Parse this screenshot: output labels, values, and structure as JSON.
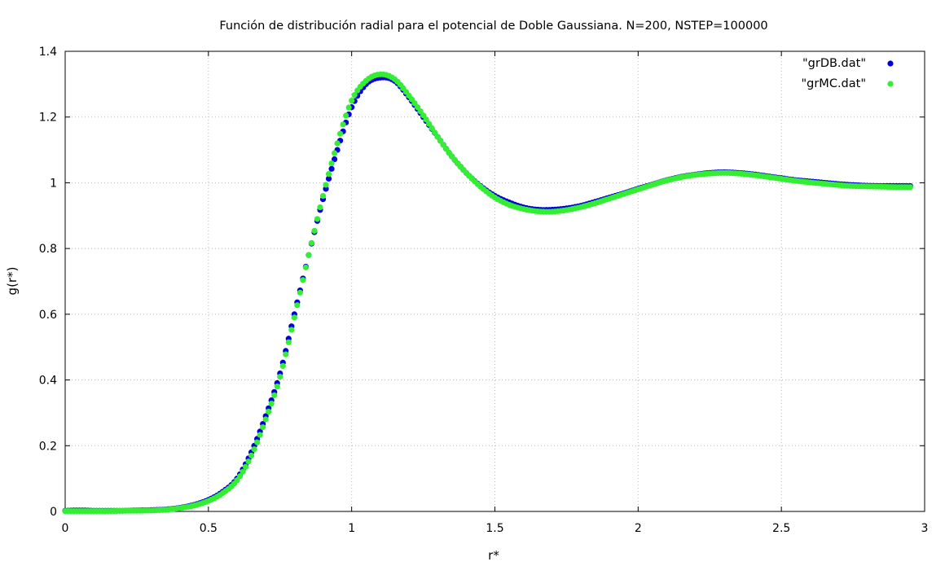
{
  "chart_data": {
    "type": "scatter",
    "title": "Función de distribución radial para el potencial de Doble Gaussiana. N=200, NSTEP=100000",
    "xlabel": "r*",
    "ylabel": "g(r*)",
    "xlim": [
      0,
      3
    ],
    "ylim": [
      0,
      1.4
    ],
    "xticks": [
      0,
      0.5,
      1,
      1.5,
      2,
      2.5,
      3
    ],
    "xtick_labels": [
      "0",
      "0.5",
      "1",
      "1.5",
      "2",
      "2.5",
      "3"
    ],
    "yticks": [
      0,
      0.2,
      0.4,
      0.6,
      0.8,
      1.0,
      1.2,
      1.4
    ],
    "ytick_labels": [
      "0",
      "0.2",
      "0.4",
      "0.6",
      "0.8",
      "1",
      "1.2",
      "1.4"
    ],
    "grid": true,
    "legend_position": "top-right",
    "series": [
      {
        "name": "\"grDB.dat\"",
        "color": "#0000dd",
        "x": [
          0.0,
          0.05,
          0.1,
          0.15,
          0.2,
          0.25,
          0.3,
          0.35,
          0.4,
          0.45,
          0.5,
          0.55,
          0.6,
          0.65,
          0.7,
          0.75,
          0.8,
          0.85,
          0.9,
          0.95,
          1.0,
          1.05,
          1.1,
          1.15,
          1.2,
          1.25,
          1.3,
          1.35,
          1.4,
          1.45,
          1.5,
          1.55,
          1.6,
          1.65,
          1.7,
          1.75,
          1.8,
          1.85,
          1.9,
          1.95,
          2.0,
          2.05,
          2.1,
          2.15,
          2.2,
          2.25,
          2.3,
          2.35,
          2.4,
          2.45,
          2.5,
          2.55,
          2.6,
          2.65,
          2.7,
          2.75,
          2.8,
          2.85,
          2.9,
          2.95
        ],
        "values": [
          0.002,
          0.003,
          0.002,
          0.002,
          0.002,
          0.003,
          0.004,
          0.006,
          0.011,
          0.02,
          0.035,
          0.06,
          0.1,
          0.18,
          0.29,
          0.42,
          0.6,
          0.78,
          0.95,
          1.1,
          1.23,
          1.3,
          1.32,
          1.31,
          1.26,
          1.2,
          1.14,
          1.08,
          1.03,
          0.99,
          0.96,
          0.94,
          0.925,
          0.918,
          0.918,
          0.922,
          0.93,
          0.942,
          0.955,
          0.968,
          0.982,
          0.995,
          1.008,
          1.018,
          1.025,
          1.03,
          1.032,
          1.03,
          1.026,
          1.02,
          1.014,
          1.008,
          1.004,
          1.0,
          0.996,
          0.993,
          0.991,
          0.99,
          0.99,
          0.99
        ]
      },
      {
        "name": "\"grMC.dat\"",
        "color": "#33ee33",
        "x": [
          0.0,
          0.05,
          0.1,
          0.15,
          0.2,
          0.25,
          0.3,
          0.35,
          0.4,
          0.45,
          0.5,
          0.55,
          0.6,
          0.65,
          0.7,
          0.75,
          0.8,
          0.85,
          0.9,
          0.95,
          1.0,
          1.05,
          1.1,
          1.15,
          1.2,
          1.25,
          1.3,
          1.35,
          1.4,
          1.45,
          1.5,
          1.55,
          1.6,
          1.65,
          1.7,
          1.75,
          1.8,
          1.85,
          1.9,
          1.95,
          2.0,
          2.05,
          2.1,
          2.15,
          2.2,
          2.25,
          2.3,
          2.35,
          2.4,
          2.45,
          2.5,
          2.55,
          2.6,
          2.65,
          2.7,
          2.75,
          2.8,
          2.85,
          2.9,
          2.95
        ],
        "values": [
          0.001,
          0.001,
          0.001,
          0.001,
          0.002,
          0.002,
          0.003,
          0.005,
          0.01,
          0.018,
          0.032,
          0.056,
          0.095,
          0.17,
          0.28,
          0.41,
          0.59,
          0.78,
          0.96,
          1.12,
          1.25,
          1.31,
          1.33,
          1.315,
          1.265,
          1.205,
          1.14,
          1.08,
          1.03,
          0.988,
          0.955,
          0.933,
          0.92,
          0.913,
          0.912,
          0.917,
          0.926,
          0.938,
          0.952,
          0.966,
          0.98,
          0.994,
          1.007,
          1.017,
          1.024,
          1.028,
          1.03,
          1.028,
          1.024,
          1.018,
          1.012,
          1.006,
          1.001,
          0.997,
          0.993,
          0.99,
          0.989,
          0.988,
          0.987,
          0.987
        ]
      }
    ]
  }
}
